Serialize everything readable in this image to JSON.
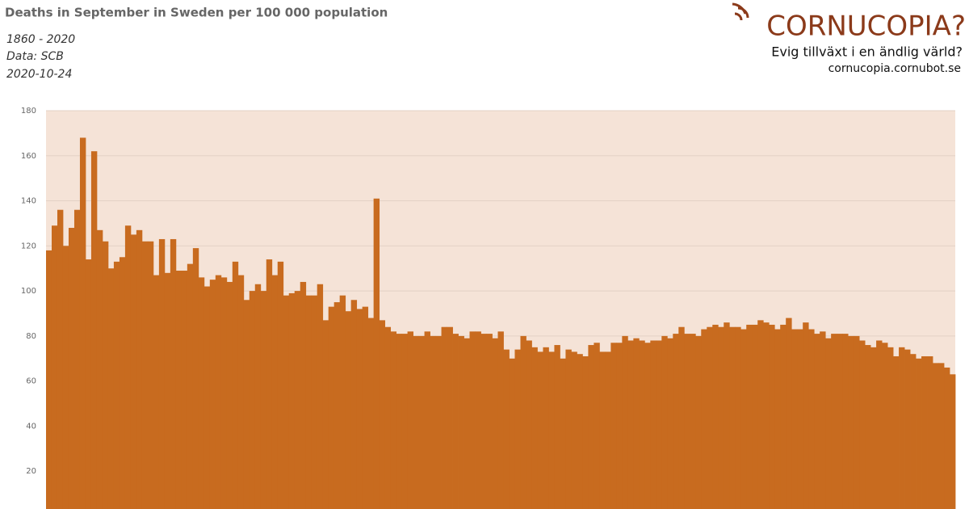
{
  "chart_data": {
    "type": "bar",
    "title": "Deaths in September in Sweden per 100 000 population",
    "subtitle": [
      "1860 - 2020",
      "Data: SCB",
      "2020-10-24"
    ],
    "values": [
      118,
      129,
      136,
      120,
      128,
      136,
      168,
      114,
      162,
      127,
      122,
      110,
      113,
      115,
      129,
      125,
      127,
      122,
      122,
      107,
      123,
      108,
      123,
      109,
      109,
      112,
      119,
      106,
      102,
      105,
      107,
      106,
      104,
      113,
      107,
      96,
      100,
      103,
      100,
      114,
      107,
      113,
      98,
      99,
      100,
      104,
      98,
      98,
      103,
      87,
      93,
      95,
      98,
      91,
      96,
      92,
      93,
      88,
      141,
      87,
      84,
      82,
      81,
      81,
      82,
      80,
      80,
      82,
      80,
      80,
      84,
      84,
      81,
      80,
      79,
      82,
      82,
      81,
      81,
      79,
      82,
      74,
      70,
      74,
      80,
      78,
      75,
      73,
      75,
      73,
      76,
      70,
      74,
      73,
      72,
      71,
      76,
      77,
      73,
      73,
      77,
      77,
      80,
      78,
      79,
      78,
      77,
      78,
      78,
      80,
      79,
      81,
      84,
      81,
      81,
      80,
      83,
      84,
      85,
      84,
      86,
      84,
      84,
      83,
      85,
      85,
      87,
      86,
      85,
      83,
      85,
      88,
      83,
      83,
      86,
      83,
      81,
      82,
      79,
      81,
      81,
      81,
      80,
      80,
      78,
      76,
      75,
      78,
      77,
      75,
      71,
      75,
      74,
      72,
      70,
      71,
      71,
      68,
      68,
      66,
      63
    ],
    "color": "#c86b1f",
    "plot_background": "#f5e3d7",
    "ylim": [
      0,
      180
    ],
    "yticks": [
      20,
      40,
      60,
      80,
      100,
      120,
      140,
      160,
      180
    ],
    "grid": true
  },
  "brand": {
    "name": "CORNUCOPIA?",
    "tagline": "Evig tillväxt i en ändlig värld?",
    "url": "cornucopia.cornubot.se"
  }
}
